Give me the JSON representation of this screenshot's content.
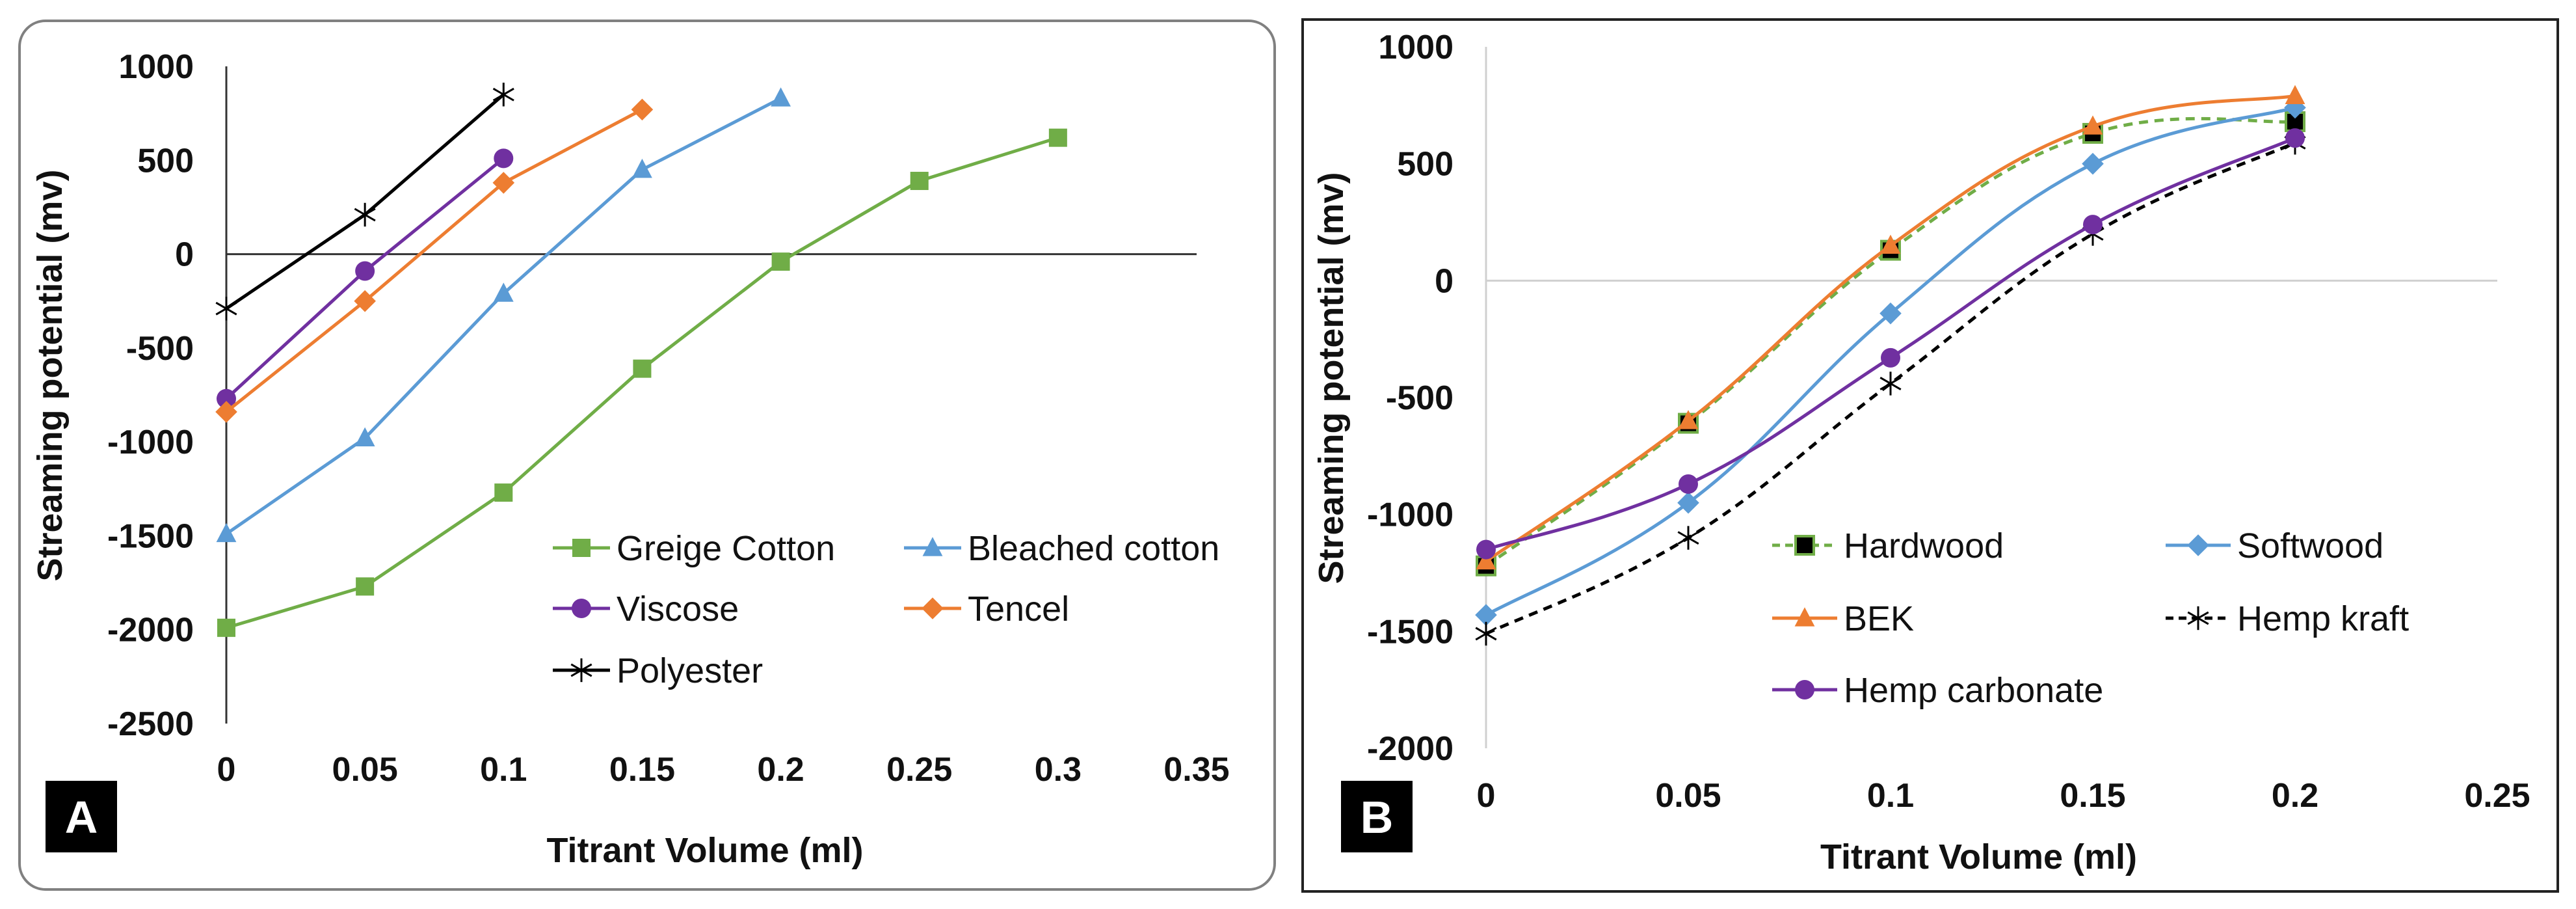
{
  "chart_data": [
    {
      "type": "line",
      "panel_label": "A",
      "xlabel": "Titrant Volume (ml)",
      "ylabel": "Streaming potential (mv)",
      "xlim": [
        0,
        0.35
      ],
      "ylim": [
        -2500,
        1000
      ],
      "x_ticks": [
        "0",
        "0.05",
        "0.1",
        "0.15",
        "0.2",
        "0.25",
        "0.3",
        "0.35"
      ],
      "y_ticks": [
        "1000",
        "500",
        "0",
        "-500",
        "-1000",
        "-1500",
        "-2000",
        "-2500"
      ],
      "legend_position": "bottom-right",
      "series": [
        {
          "name": "Greige Cotton",
          "color": "#70ad47",
          "marker": "square",
          "dash": "solid",
          "x": [
            0,
            0.05,
            0.1,
            0.15,
            0.2,
            0.25,
            0.3
          ],
          "y": [
            -1990,
            -1770,
            -1270,
            -610,
            -40,
            390,
            620
          ]
        },
        {
          "name": "Bleached cotton",
          "color": "#5b9bd5",
          "marker": "triangle",
          "dash": "solid",
          "x": [
            0,
            0.05,
            0.1,
            0.15,
            0.2
          ],
          "y": [
            -1490,
            -980,
            -210,
            450,
            830
          ]
        },
        {
          "name": "Viscose",
          "color": "#7030a0",
          "marker": "circle",
          "dash": "solid",
          "x": [
            0,
            0.05,
            0.1
          ],
          "y": [
            -770,
            -90,
            510
          ]
        },
        {
          "name": "Tencel",
          "color": "#ed7d31",
          "marker": "diamond",
          "dash": "solid",
          "x": [
            0,
            0.05,
            0.1,
            0.15
          ],
          "y": [
            -840,
            -250,
            380,
            770
          ]
        },
        {
          "name": "Polyester",
          "color": "#000000",
          "marker": "star",
          "dash": "solid",
          "x": [
            0,
            0.05,
            0.1
          ],
          "y": [
            -290,
            210,
            850
          ]
        }
      ]
    },
    {
      "type": "line",
      "panel_label": "B",
      "xlabel": "Titrant Volume  (ml)",
      "ylabel": "Streaming potential (mv)",
      "xlim": [
        0,
        0.25
      ],
      "ylim": [
        -2000,
        1000
      ],
      "x_ticks": [
        "0",
        "0.05",
        "0.1",
        "0.15",
        "0.2",
        "0.25"
      ],
      "y_ticks": [
        "1000",
        "500",
        "0",
        "-500",
        "-1000",
        "-1500",
        "-2000"
      ],
      "legend_position": "bottom-right",
      "series": [
        {
          "name": "Hardwood",
          "color": "#70ad47",
          "marker": "square-black",
          "dash": "dashed",
          "x": [
            0,
            0.05,
            0.1,
            0.15,
            0.2
          ],
          "y": [
            -1220,
            -610,
            130,
            630,
            680
          ]
        },
        {
          "name": "Softwood",
          "color": "#5b9bd5",
          "marker": "diamond",
          "dash": "solid",
          "x": [
            0,
            0.05,
            0.1,
            0.15,
            0.2
          ],
          "y": [
            -1430,
            -950,
            -140,
            500,
            740
          ]
        },
        {
          "name": "BEK",
          "color": "#ed7d31",
          "marker": "triangle",
          "dash": "solid",
          "x": [
            0,
            0.05,
            0.1,
            0.15,
            0.2
          ],
          "y": [
            -1200,
            -600,
            150,
            660,
            790
          ]
        },
        {
          "name": "Hemp kraft",
          "color": "#000000",
          "marker": "star",
          "dash": "dashed",
          "x": [
            0,
            0.05,
            0.1,
            0.15,
            0.2
          ],
          "y": [
            -1510,
            -1100,
            -440,
            200,
            590
          ]
        },
        {
          "name": "Hemp carbonate",
          "color": "#7030a0",
          "marker": "circle",
          "dash": "solid",
          "x": [
            0,
            0.05,
            0.1,
            0.15,
            0.2
          ],
          "y": [
            -1150,
            -870,
            -330,
            240,
            610
          ]
        }
      ]
    }
  ]
}
